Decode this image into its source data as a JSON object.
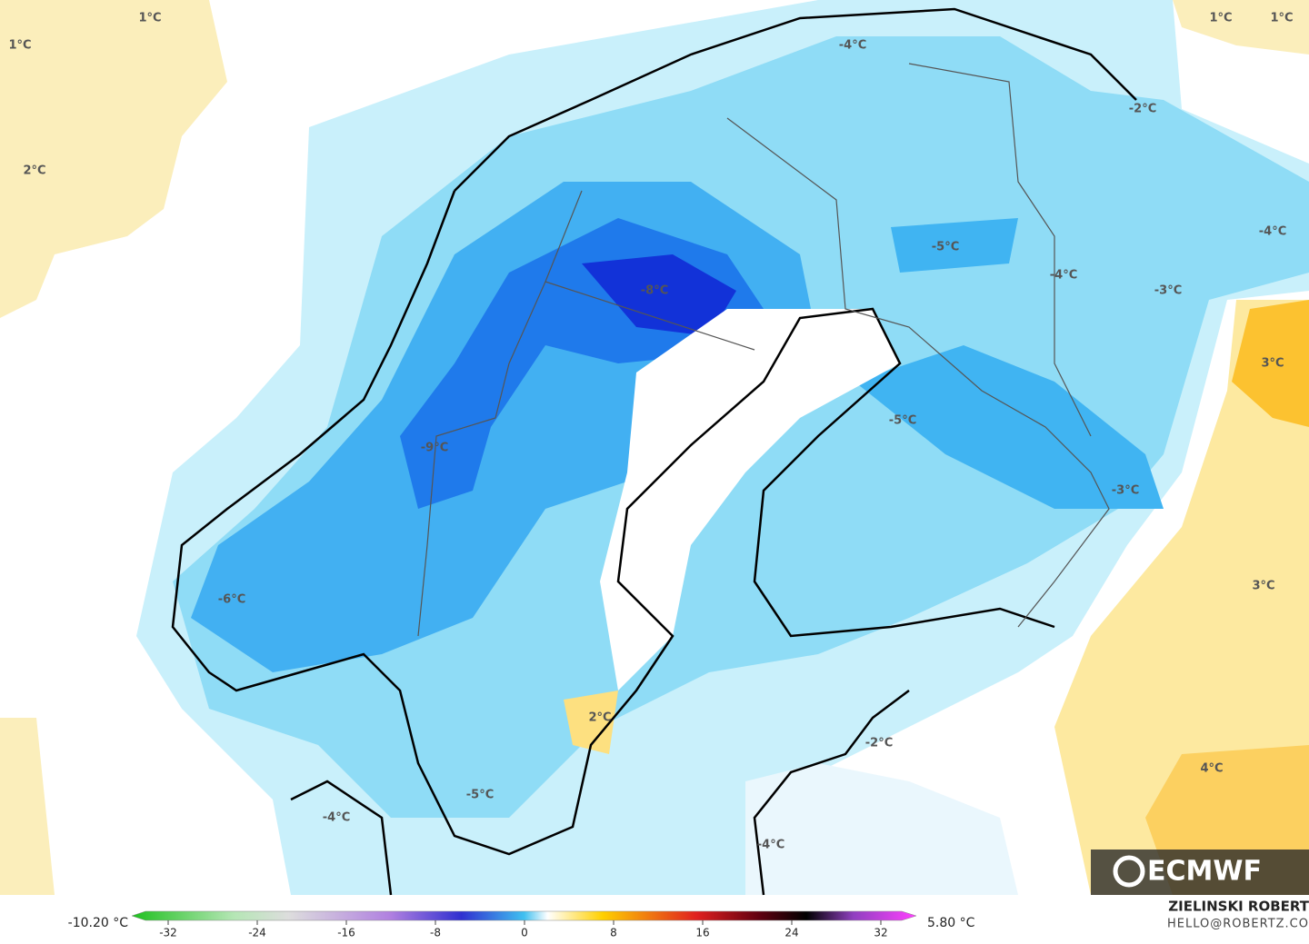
{
  "map": {
    "labels": [
      "1°C",
      "1°C",
      "1°C",
      "1°C",
      "2°C",
      "-4°C",
      "-2°C",
      "-5°C",
      "-8°C",
      "-4°C",
      "-3°C",
      "-4°C",
      "3°C",
      "-5°C",
      "-9°C",
      "-3°C",
      "-6°C",
      "3°C",
      "2°C",
      "-2°C",
      "4°C",
      "-5°C",
      "-4°C",
      "-4°C"
    ]
  },
  "logo": "ECMWF",
  "colorbar": {
    "min_label": "-10.20 °C",
    "max_label": "5.80 °C",
    "ticks": [
      -32,
      -24,
      -16,
      -8,
      0,
      8,
      16,
      24,
      32
    ]
  },
  "credit": {
    "author": "ZIELINSKI ROBERT",
    "contact": "HELLO@ROBERTZ.CO"
  }
}
